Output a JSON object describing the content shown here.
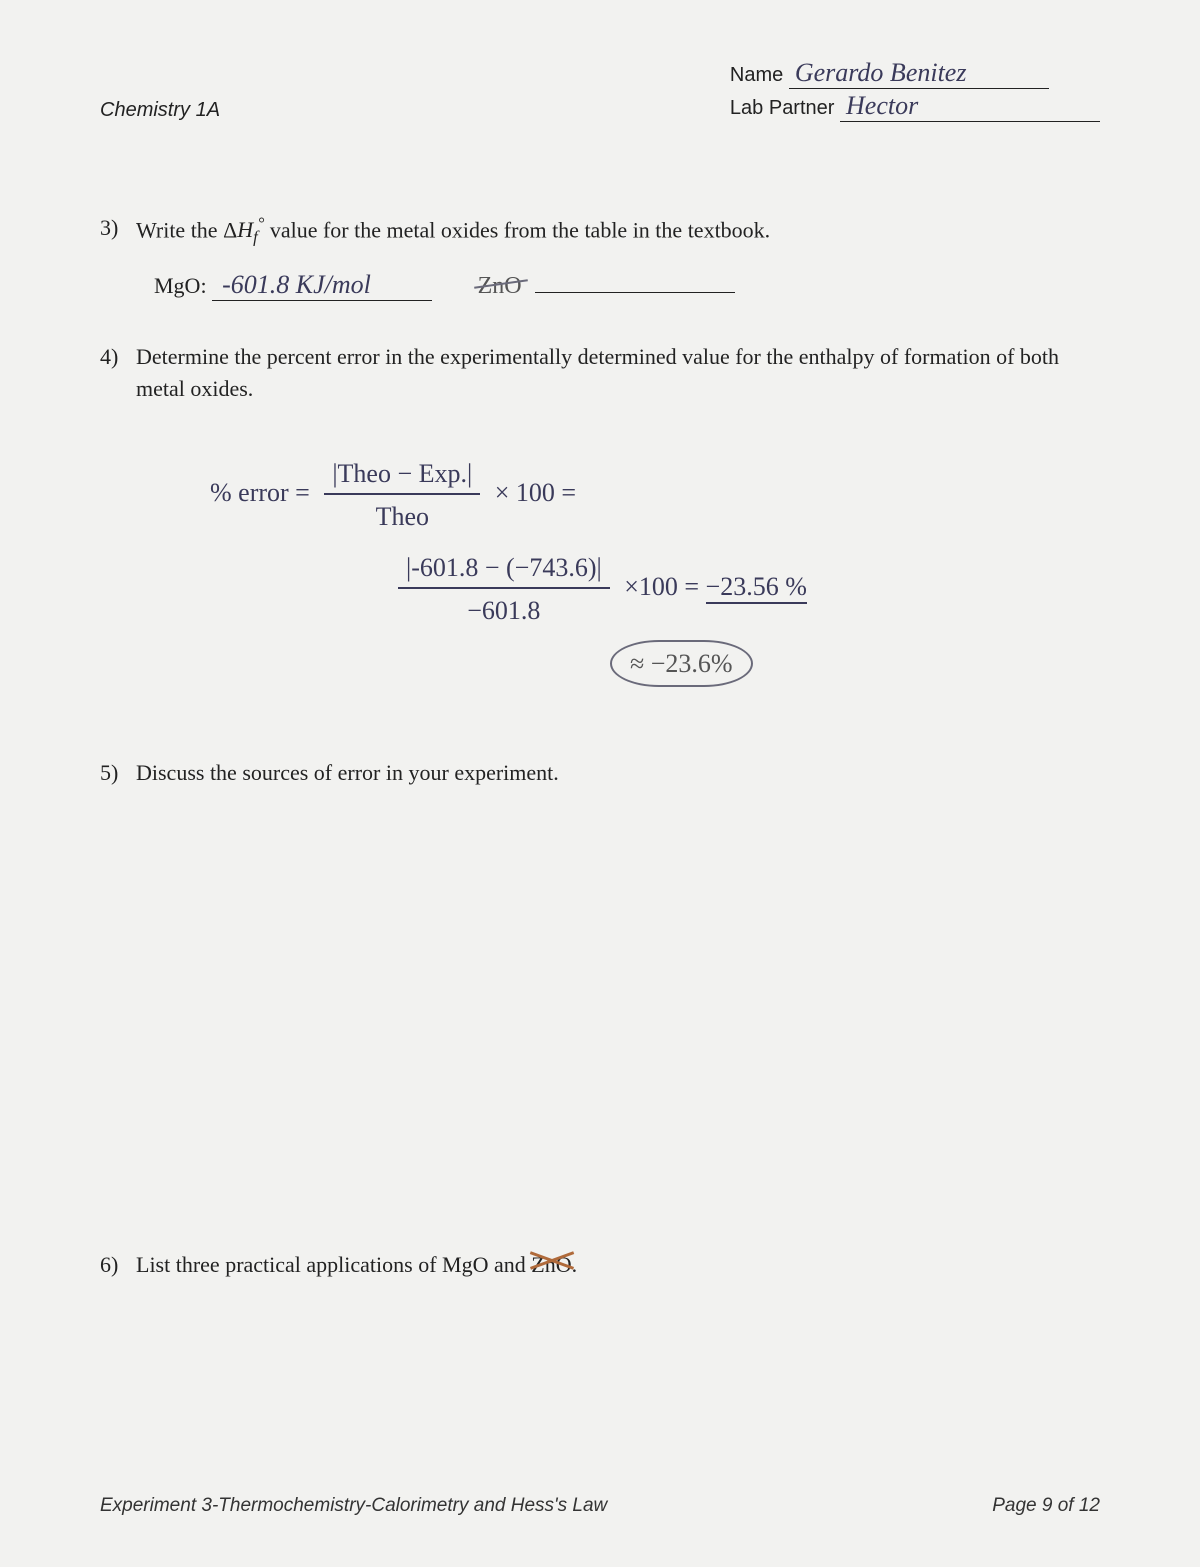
{
  "header": {
    "course": "Chemistry 1A",
    "name_label": "Name",
    "name_value": "Gerardo Benitez",
    "partner_label": "Lab Partner",
    "partner_value": "Hector"
  },
  "q3": {
    "number": "3)",
    "text": "Write the ΔH_f° value for the metal oxides from the table in the textbook.",
    "mgo_label": "MgO:",
    "mgo_value": "-601.8 KJ/mol",
    "zno_label": "ZnO"
  },
  "q4": {
    "number": "4)",
    "text": "Determine the percent error in the experimentally determined value for the enthalpy of formation of both metal oxides.",
    "work": {
      "lhs": "% error =",
      "frac1_top": "|Theo − Exp.|",
      "frac1_bot": "Theo",
      "times100": "× 100 =",
      "frac2_top": "|-601.8 − (−743.6)|",
      "frac2_bot": "−601.8",
      "times100b": "×100  =",
      "result": "−23.56 %",
      "boxed": "≈ −23.6%"
    }
  },
  "q5": {
    "number": "5)",
    "text": "Discuss the sources of error in your experiment."
  },
  "q6": {
    "number": "6)",
    "text_pre": "List three practical applications of MgO and ",
    "zno": "ZnO",
    "text_post": "."
  },
  "footer": {
    "left": "Experiment 3-Thermochemistry-Calorimetry and Hess's Law",
    "right": "Page 9 of 12"
  },
  "colors": {
    "paper": "#f2f2f0",
    "ink": "#222222",
    "hand": "#3a3a5a",
    "faded": "#6a6a7a",
    "brown_cross": "#b06a3a"
  }
}
